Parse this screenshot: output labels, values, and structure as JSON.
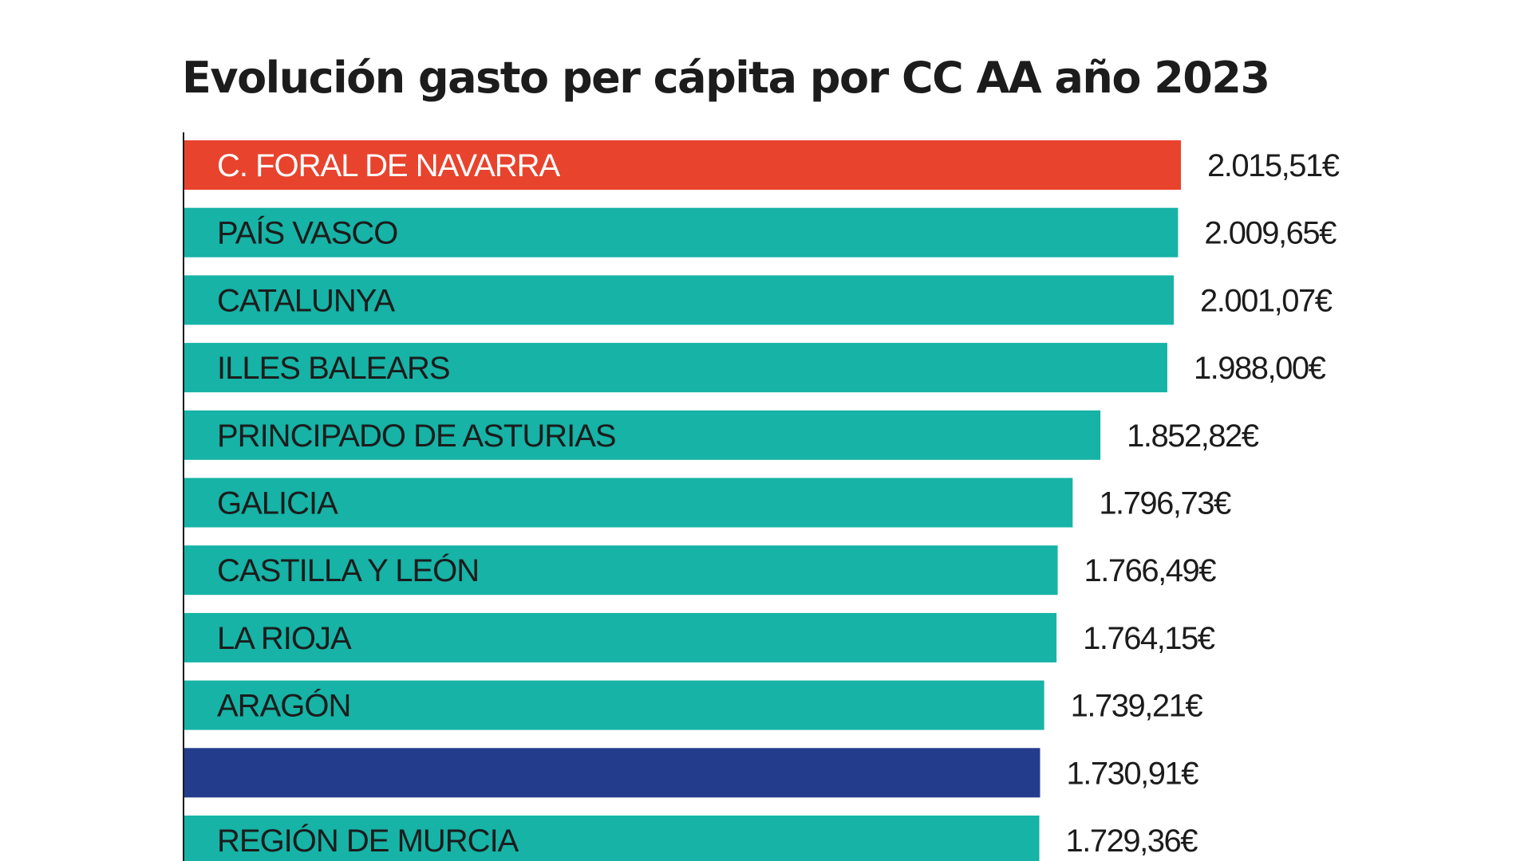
{
  "chart_data": {
    "type": "bar",
    "orientation": "horizontal",
    "title": "Evolución gasto per cápita por CC AA año 2023",
    "categories": [
      "C. FORAL DE NAVARRA",
      "PAÍS VASCO",
      "CATALUNYA",
      "ILLES BALEARS",
      "PRINCIPADO DE ASTURIAS",
      "GALICIA",
      "CASTILLA Y LEÓN",
      "LA RIOJA",
      "ARAGÓN",
      "",
      "REGIÓN DE MURCIA"
    ],
    "values": [
      2015.51,
      2009.65,
      2001.07,
      1988.0,
      1852.82,
      1796.73,
      1766.49,
      1764.15,
      1739.21,
      1730.91,
      1729.36
    ],
    "value_labels": [
      "2.015,51€",
      "2.009,65€",
      "2.001,07€",
      "1.988,00€",
      "1.852,82€",
      "1.796,73€",
      "1.766,49€",
      "1.764,15€",
      "1.739,21€",
      "1.730,91€",
      "1.729,36€"
    ],
    "bar_colors": [
      "#e8432d",
      "#16b3a6",
      "#16b3a6",
      "#16b3a6",
      "#16b3a6",
      "#16b3a6",
      "#16b3a6",
      "#16b3a6",
      "#16b3a6",
      "#243c8c",
      "#16b3a6"
    ],
    "label_colors": [
      "#ffffff",
      "#1c1c1c",
      "#1c1c1c",
      "#1c1c1c",
      "#1c1c1c",
      "#1c1c1c",
      "#1c1c1c",
      "#1c1c1c",
      "#1c1c1c",
      "#1c1c1c",
      "#1c1c1c"
    ],
    "axis_color": "#1c1c1c",
    "grid": false,
    "legend": "none",
    "xlabel": "",
    "ylabel": ""
  }
}
